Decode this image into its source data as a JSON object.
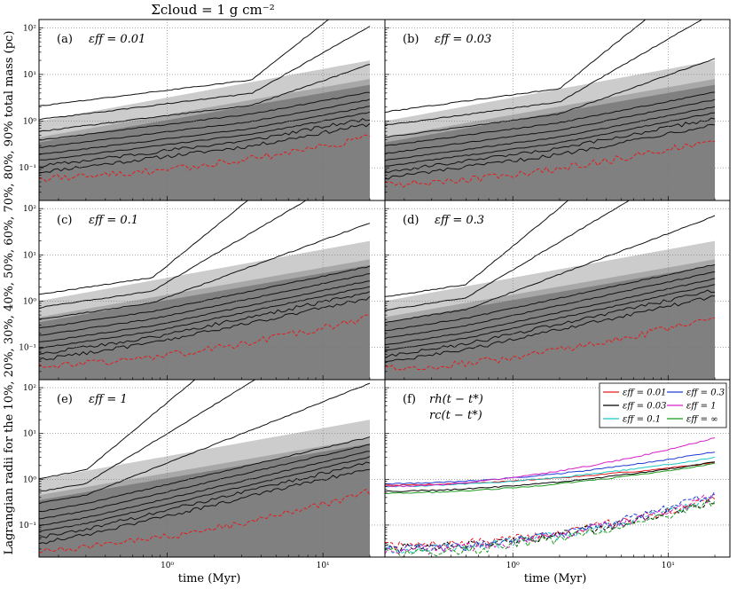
{
  "figure": {
    "title": "Σcloud = 1 g cm⁻²",
    "ylabel": "Lagrangian radii for the  10%, 20%, 30%, 40%, 50%, 60%, 70%, 80%, 90% total mass (pc)",
    "xlabel_left": "time (Myr)",
    "xlabel_right": "time (Myr)"
  },
  "chart_data": {
    "type": "line",
    "x_scale": "log",
    "y_scale": "log",
    "xlim": [
      0.15,
      25
    ],
    "ylim": [
      0.02,
      150
    ],
    "grid": true,
    "x_ticks": [
      "10⁰",
      "10¹"
    ],
    "y_ticks": [
      "10⁻¹",
      "10⁰",
      "10¹",
      "10²"
    ],
    "panels": [
      {
        "id": "a",
        "label": "(a)",
        "eff": "εff = 0.01",
        "t_break": 3.5,
        "inner_start": 0.06,
        "inner_end": 0.45
      },
      {
        "id": "b",
        "label": "(b)",
        "eff": "εff = 0.03",
        "t_break": 2.0,
        "inner_start": 0.045,
        "inner_end": 0.4
      },
      {
        "id": "c",
        "label": "(c)",
        "eff": "εff = 0.1",
        "t_break": 0.8,
        "inner_start": 0.04,
        "inner_end": 0.45
      },
      {
        "id": "d",
        "label": "(d)",
        "eff": "εff = 0.3",
        "t_break": 0.5,
        "inner_start": 0.035,
        "inner_end": 0.45
      },
      {
        "id": "e",
        "label": "(e)",
        "eff": "εff = 1",
        "t_break": 0.3,
        "inner_start": 0.03,
        "inner_end": 0.55
      },
      {
        "id": "f",
        "label": "(f)",
        "legend_title_1": "rh(t − t*)",
        "legend_title_2": "rc(t − t*)"
      }
    ],
    "shaded_bands": [
      {
        "name": "light",
        "color": "#cccccc",
        "start": [
          1.0,
          0.15
        ],
        "end": [
          20,
          0.25
        ]
      },
      {
        "name": "mid",
        "color": "#a8a8a8",
        "start": [
          0.45,
          0.15
        ],
        "end": [
          8,
          0.2
        ]
      },
      {
        "name": "dark",
        "color": "#808080",
        "start": [
          0.35,
          0.02
        ],
        "end": [
          6,
          0.02
        ]
      }
    ],
    "legend": [
      {
        "name": "εff = 0.01",
        "color": "#e41a1c"
      },
      {
        "name": "εff = 0.3",
        "color": "#1f3bd6"
      },
      {
        "name": "εff = 0.03",
        "color": "#000000"
      },
      {
        "name": "εff = 1",
        "color": "#d61fc7"
      },
      {
        "name": "εff = 0.1",
        "color": "#1fc7c7"
      },
      {
        "name": "εff = ∞",
        "color": "#1c9a1c"
      }
    ],
    "panel_f_series": [
      {
        "eff": "0.01",
        "color": "#e41a1c",
        "rh_start": 0.75,
        "rh_end": 2.3,
        "rc_start": 0.035,
        "rc_end": 0.4
      },
      {
        "eff": "0.03",
        "color": "#000000",
        "rh_start": 0.55,
        "rh_end": 2.4,
        "rc_start": 0.032,
        "rc_end": 0.35
      },
      {
        "eff": "0.1",
        "color": "#1fc7c7",
        "rh_start": 0.7,
        "rh_end": 3.0,
        "rc_start": 0.03,
        "rc_end": 0.4
      },
      {
        "eff": "0.3",
        "color": "#1f3bd6",
        "rh_start": 0.8,
        "rh_end": 4.0,
        "rc_start": 0.03,
        "rc_end": 0.5
      },
      {
        "eff": "1",
        "color": "#d61fc7",
        "rh_start": 0.7,
        "rh_end": 8.0,
        "rc_start": 0.028,
        "rc_end": 0.45
      },
      {
        "eff": "∞",
        "color": "#1c9a1c",
        "rh_start": 0.5,
        "rh_end": 2.2,
        "rc_start": 0.025,
        "rc_end": 0.35
      }
    ]
  }
}
